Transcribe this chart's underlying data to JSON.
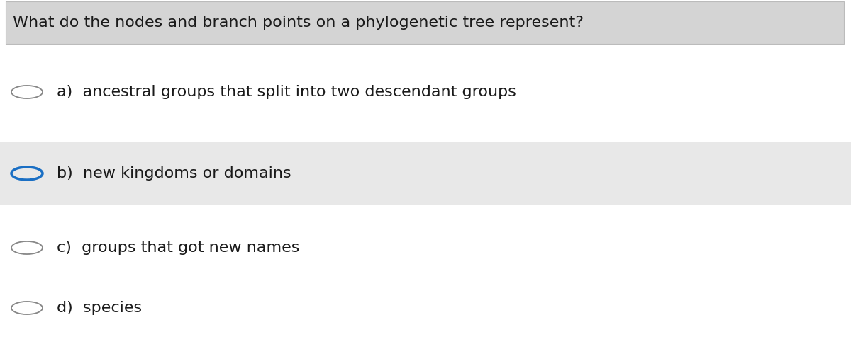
{
  "question": "What do the nodes and branch points on a phylogenetic tree represent?",
  "options": [
    {
      "label": "a)",
      "text": "ancestral groups that split into two descendant groups",
      "selected": false,
      "highlighted": false
    },
    {
      "label": "b)",
      "text": "new kingdoms or domains",
      "selected": true,
      "highlighted": true
    },
    {
      "label": "c)",
      "text": "groups that got new names",
      "selected": false,
      "highlighted": false
    },
    {
      "label": "d)",
      "text": "species",
      "selected": false,
      "highlighted": false
    }
  ],
  "question_bg_color": "#d4d4d4",
  "highlight_bg_color": "#e8e8e8",
  "selected_circle_color": "#1a6fc4",
  "unselected_circle_color": "#888888",
  "question_fontsize": 16,
  "option_fontsize": 16,
  "text_color": "#1a1a1a",
  "background_color": "#ffffff",
  "fig_width": 12.0,
  "fig_height": 4.93
}
